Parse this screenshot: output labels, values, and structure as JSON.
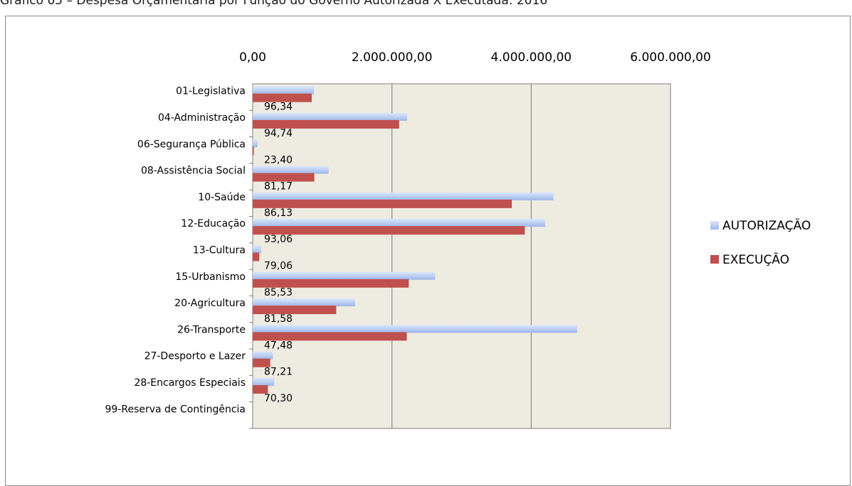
{
  "page": {
    "title": "Gráfico 05 – Despesa Orçamentária por Função do Governo Autorizada X Executada: 2016"
  },
  "colors": {
    "plot_background": "#eeebe1",
    "autorizacao": "#b9ccf2",
    "autorizacao_light": "#dbe6fb",
    "execucao": "#c0504d",
    "gridline": "#8c8c8c"
  },
  "chart_data": {
    "type": "bar",
    "orientation": "horizontal",
    "x_axis_position": "top",
    "xlim": [
      0,
      6000000
    ],
    "x_ticks": [
      0,
      2000000,
      4000000,
      6000000
    ],
    "x_tick_labels": [
      "0,00",
      "2.000.000,00",
      "4.000.000,00",
      "6.000.000,00"
    ],
    "grid": true,
    "legend_position": "right",
    "categories": [
      "01-Legislativa",
      "04-Administração",
      "06-Segurança Pública",
      "08-Assistência Social",
      "10-Saúde",
      "12-Educação",
      "13-Cultura",
      "15-Urbanismo",
      "20-Agricultura",
      "26-Transporte",
      "27-Desporto e Lazer",
      "28-Encargos Especiais",
      "99-Reserva de Contingência"
    ],
    "series": [
      {
        "name": "AUTORIZAÇÃO",
        "values": [
          880000,
          2220000,
          70000,
          1090000,
          4320000,
          4200000,
          120000,
          2620000,
          1470000,
          4660000,
          290000,
          310000,
          0
        ]
      },
      {
        "name": "EXECUÇÃO",
        "values": [
          848000,
          2103000,
          16000,
          885000,
          3721000,
          3908000,
          95000,
          2241000,
          1199000,
          2213000,
          253000,
          218000,
          0
        ]
      }
    ],
    "data_labels": [
      "96,34",
      "94,74",
      "23,40",
      "81,17",
      "86,13",
      "93,06",
      "79,06",
      "85,53",
      "81,58",
      "47,48",
      "87,21",
      "70,30",
      ""
    ]
  }
}
